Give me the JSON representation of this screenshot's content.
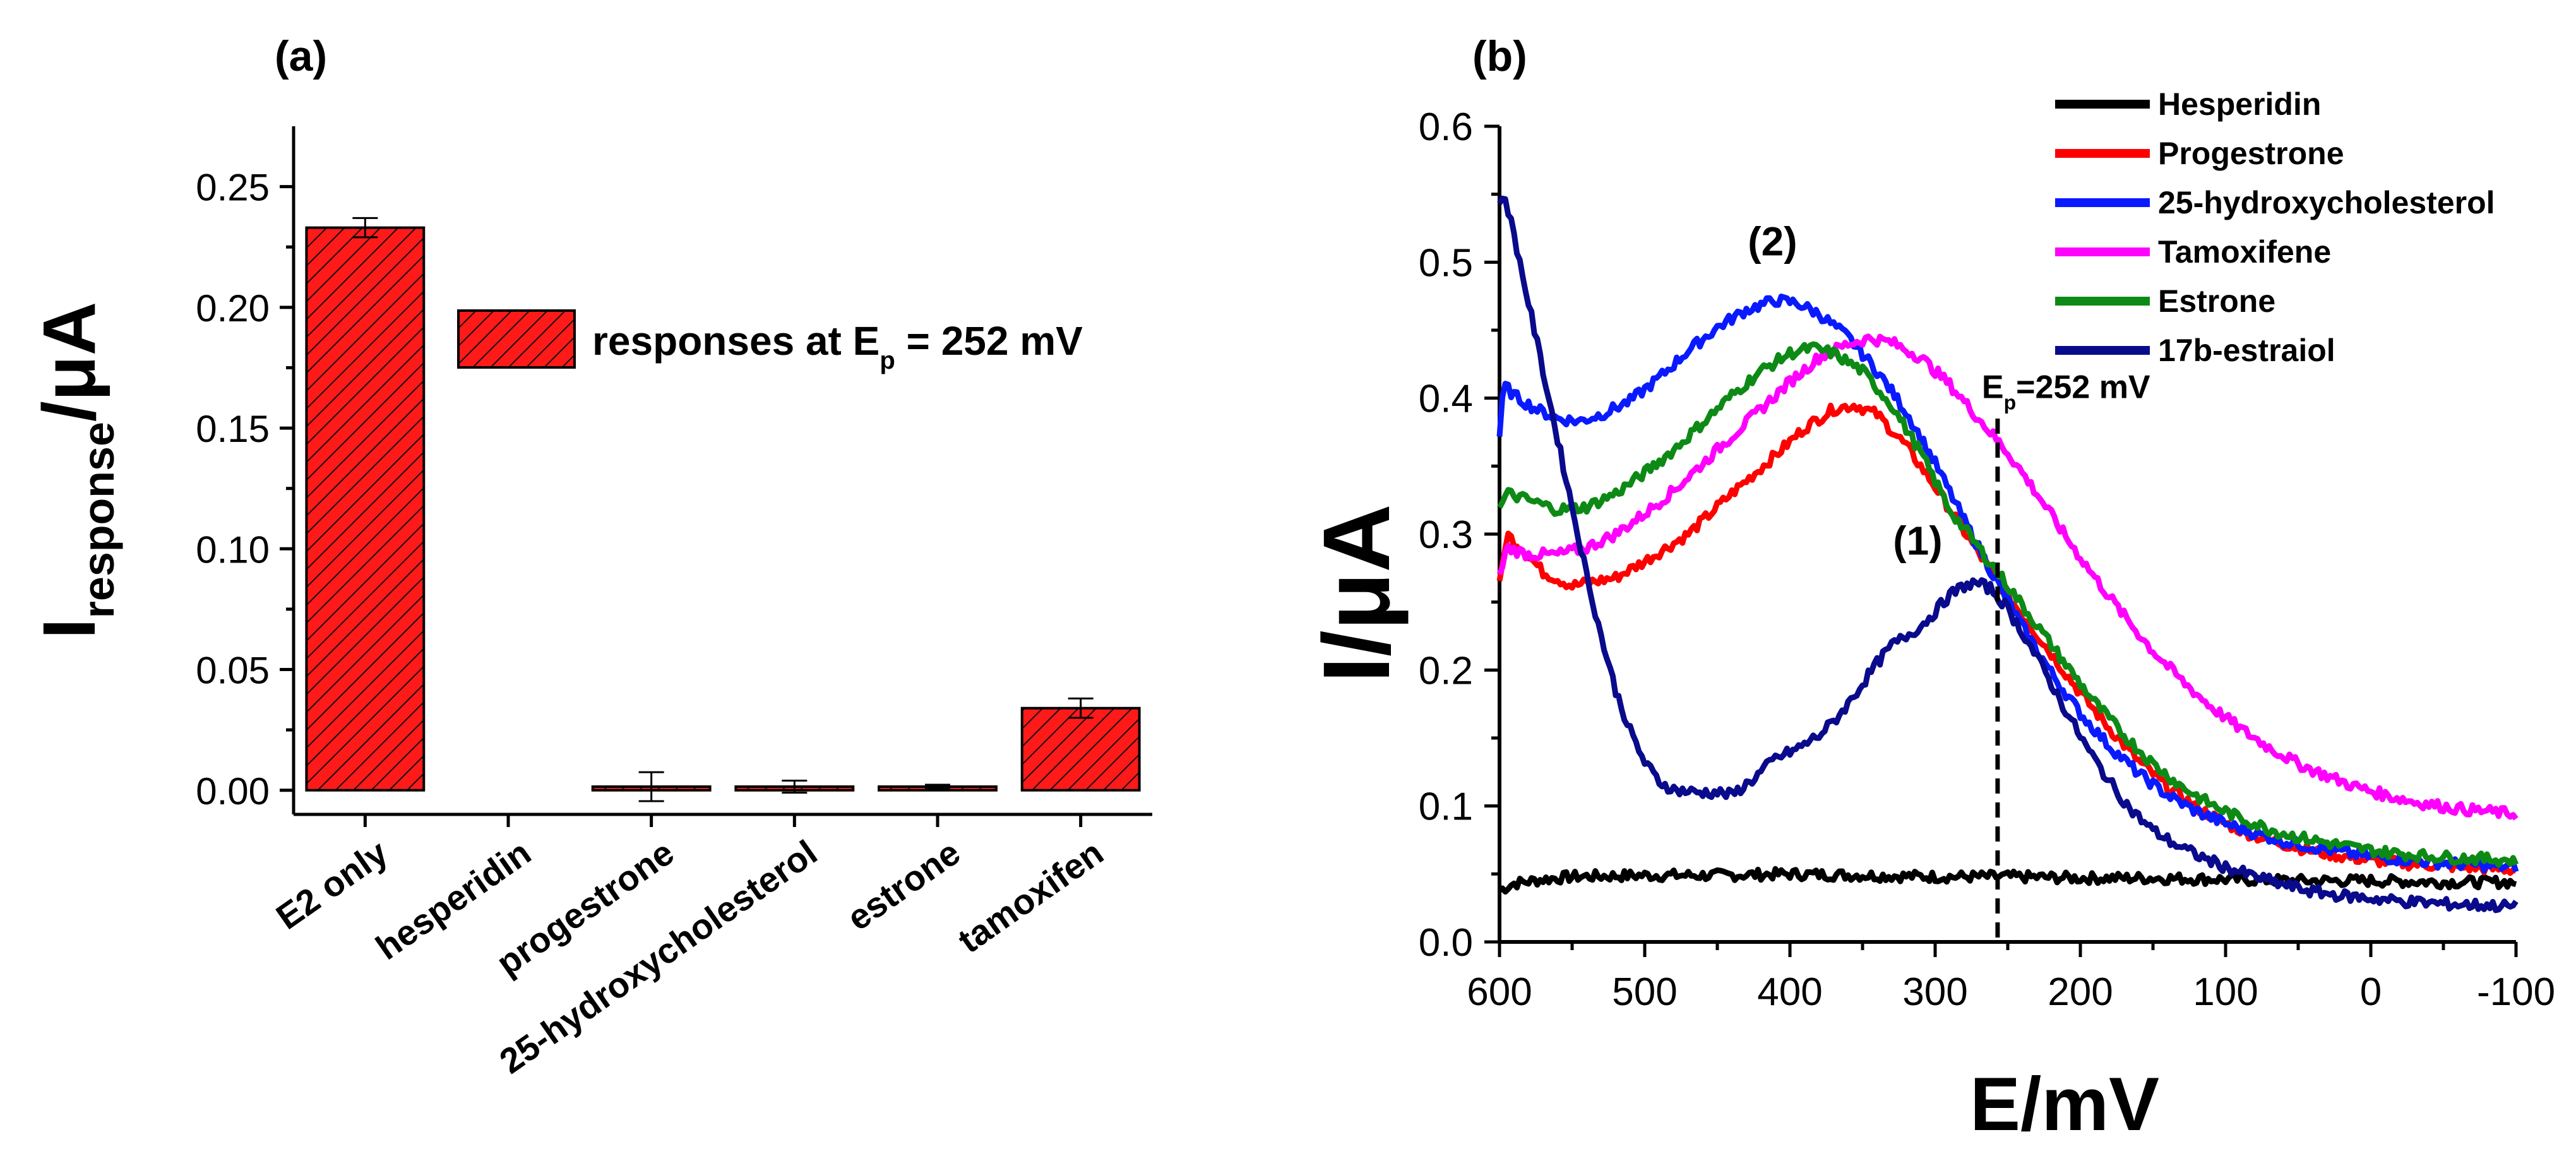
{
  "chart_data": [
    {
      "panel_label": "(a)",
      "type": "bar",
      "ylabel": "I",
      "ylabel_sub": "response",
      "ylabel_tail": "/μA",
      "ylim": [
        -0.01,
        0.275
      ],
      "yticks": [
        0.0,
        0.05,
        0.1,
        0.15,
        0.2,
        0.25
      ],
      "ytick_labels": [
        "0.00",
        "0.05",
        "0.10",
        "0.15",
        "0.20",
        "0.25"
      ],
      "categories": [
        "E2 only",
        "hesperidin",
        "progestrone",
        "25-hydroxycholesterol",
        "estrone",
        "tamoxifen"
      ],
      "values": [
        0.233,
        0.0,
        0.0015,
        0.0015,
        0.0015,
        0.034
      ],
      "errors": [
        0.004,
        0.0,
        0.006,
        0.0025,
        0.0008,
        0.004
      ],
      "legend_text": "responses at E",
      "legend_sub": "p",
      "legend_tail": " = 252 mV",
      "bar_color": "#ff1a1a",
      "hatch_color": "#000000"
    },
    {
      "panel_label": "(b)",
      "type": "line",
      "xlabel": "E/mV",
      "ylabel": "I/μA",
      "xlim": [
        600,
        -100
      ],
      "ylim": [
        0.0,
        0.6
      ],
      "xticks": [
        600,
        500,
        400,
        300,
        200,
        100,
        0,
        -100
      ],
      "xtick_labels": [
        "600",
        "500",
        "400",
        "300",
        "200",
        "100",
        "0",
        "-100"
      ],
      "yticks": [
        0.0,
        0.1,
        0.2,
        0.3,
        0.4,
        0.5,
        0.6
      ],
      "ytick_labels": [
        "0.0",
        "0.1",
        "0.2",
        "0.3",
        "0.4",
        "0.5",
        "0.6"
      ],
      "annotations": {
        "peak1": "(1)",
        "peak2": "(2)",
        "ep_text": "E",
        "ep_sub": "p",
        "ep_tail": "=252 mV",
        "ep_x": 257
      },
      "series": [
        {
          "name": "Hesperidin",
          "color": "#000000",
          "points": [
            [
              600,
              0.038
            ],
            [
              590,
              0.043
            ],
            [
              570,
              0.046
            ],
            [
              550,
              0.048
            ],
            [
              500,
              0.049
            ],
            [
              450,
              0.049
            ],
            [
              400,
              0.05
            ],
            [
              350,
              0.049
            ],
            [
              300,
              0.048
            ],
            [
              250,
              0.048
            ],
            [
              200,
              0.047
            ],
            [
              150,
              0.047
            ],
            [
              100,
              0.046
            ],
            [
              50,
              0.045
            ],
            [
              0,
              0.045
            ],
            [
              -50,
              0.044
            ],
            [
              -100,
              0.044
            ]
          ]
        },
        {
          "name": "Progestrone",
          "color": "#ff0000",
          "points": [
            [
              600,
              0.262
            ],
            [
              595,
              0.3
            ],
            [
              585,
              0.29
            ],
            [
              570,
              0.272
            ],
            [
              550,
              0.262
            ],
            [
              520,
              0.268
            ],
            [
              500,
              0.28
            ],
            [
              470,
              0.3
            ],
            [
              440,
              0.33
            ],
            [
              410,
              0.358
            ],
            [
              390,
              0.378
            ],
            [
              370,
              0.392
            ],
            [
              355,
              0.395
            ],
            [
              340,
              0.388
            ],
            [
              320,
              0.365
            ],
            [
              300,
              0.335
            ],
            [
              280,
              0.302
            ],
            [
              260,
              0.27
            ],
            [
              240,
              0.24
            ],
            [
              220,
              0.212
            ],
            [
              200,
              0.183
            ],
            [
              180,
              0.157
            ],
            [
              160,
              0.133
            ],
            [
              140,
              0.114
            ],
            [
              120,
              0.099
            ],
            [
              100,
              0.087
            ],
            [
              80,
              0.078
            ],
            [
              60,
              0.072
            ],
            [
              40,
              0.067
            ],
            [
              20,
              0.063
            ],
            [
              0,
              0.06
            ],
            [
              -20,
              0.058
            ],
            [
              -50,
              0.056
            ],
            [
              -100,
              0.053
            ]
          ]
        },
        {
          "name": "25-hydroxycholesterol",
          "color": "#0a1aff",
          "points": [
            [
              600,
              0.372
            ],
            [
              597,
              0.41
            ],
            [
              590,
              0.402
            ],
            [
              575,
              0.392
            ],
            [
              560,
              0.385
            ],
            [
              545,
              0.383
            ],
            [
              530,
              0.388
            ],
            [
              510,
              0.398
            ],
            [
              490,
              0.415
            ],
            [
              470,
              0.435
            ],
            [
              450,
              0.452
            ],
            [
              430,
              0.465
            ],
            [
              410,
              0.472
            ],
            [
              395,
              0.47
            ],
            [
              380,
              0.462
            ],
            [
              360,
              0.445
            ],
            [
              340,
              0.42
            ],
            [
              320,
              0.39
            ],
            [
              300,
              0.352
            ],
            [
              280,
              0.31
            ],
            [
              260,
              0.27
            ],
            [
              240,
              0.232
            ],
            [
              220,
              0.198
            ],
            [
              200,
              0.168
            ],
            [
              180,
              0.144
            ],
            [
              160,
              0.124
            ],
            [
              140,
              0.108
            ],
            [
              120,
              0.096
            ],
            [
              100,
              0.087
            ],
            [
              80,
              0.08
            ],
            [
              60,
              0.074
            ],
            [
              40,
              0.07
            ],
            [
              20,
              0.066
            ],
            [
              0,
              0.063
            ],
            [
              -20,
              0.061
            ],
            [
              -50,
              0.058
            ],
            [
              -100,
              0.055
            ]
          ]
        },
        {
          "name": "Tamoxifene",
          "color": "#ff00ff",
          "points": [
            [
              600,
              0.268
            ],
            [
              595,
              0.29
            ],
            [
              580,
              0.285
            ],
            [
              560,
              0.285
            ],
            [
              540,
              0.29
            ],
            [
              520,
              0.3
            ],
            [
              500,
              0.315
            ],
            [
              480,
              0.332
            ],
            [
              460,
              0.352
            ],
            [
              440,
              0.372
            ],
            [
              420,
              0.392
            ],
            [
              400,
              0.412
            ],
            [
              380,
              0.43
            ],
            [
              360,
              0.44
            ],
            [
              345,
              0.444
            ],
            [
              330,
              0.441
            ],
            [
              310,
              0.43
            ],
            [
              290,
              0.41
            ],
            [
              270,
              0.385
            ],
            [
              250,
              0.36
            ],
            [
              230,
              0.33
            ],
            [
              210,
              0.298
            ],
            [
              190,
              0.268
            ],
            [
              170,
              0.24
            ],
            [
              150,
              0.214
            ],
            [
              130,
              0.192
            ],
            [
              110,
              0.173
            ],
            [
              90,
              0.157
            ],
            [
              70,
              0.143
            ],
            [
              50,
              0.131
            ],
            [
              30,
              0.122
            ],
            [
              10,
              0.114
            ],
            [
              -10,
              0.108
            ],
            [
              -30,
              0.103
            ],
            [
              -60,
              0.098
            ],
            [
              -100,
              0.094
            ]
          ]
        },
        {
          "name": "Estrone",
          "color": "#0d8a15",
          "points": [
            [
              600,
              0.318
            ],
            [
              595,
              0.33
            ],
            [
              580,
              0.325
            ],
            [
              560,
              0.318
            ],
            [
              540,
              0.32
            ],
            [
              520,
              0.33
            ],
            [
              500,
              0.345
            ],
            [
              480,
              0.362
            ],
            [
              460,
              0.382
            ],
            [
              440,
              0.402
            ],
            [
              420,
              0.42
            ],
            [
              400,
              0.433
            ],
            [
              385,
              0.437
            ],
            [
              370,
              0.433
            ],
            [
              350,
              0.42
            ],
            [
              330,
              0.395
            ],
            [
              310,
              0.36
            ],
            [
              290,
              0.318
            ],
            [
              270,
              0.29
            ],
            [
              250,
              0.262
            ],
            [
              230,
              0.233
            ],
            [
              210,
              0.204
            ],
            [
              190,
              0.176
            ],
            [
              170,
              0.152
            ],
            [
              150,
              0.131
            ],
            [
              130,
              0.114
            ],
            [
              110,
              0.101
            ],
            [
              90,
              0.091
            ],
            [
              70,
              0.083
            ],
            [
              50,
              0.077
            ],
            [
              30,
              0.073
            ],
            [
              10,
              0.069
            ],
            [
              -10,
              0.066
            ],
            [
              -40,
              0.063
            ],
            [
              -100,
              0.06
            ]
          ]
        },
        {
          "name": "17b-estraiol",
          "color": "#0a0a8c",
          "points": [
            [
              600,
              0.54
            ],
            [
              597,
              0.552
            ],
            [
              590,
              0.52
            ],
            [
              580,
              0.47
            ],
            [
              570,
              0.42
            ],
            [
              560,
              0.37
            ],
            [
              550,
              0.32
            ],
            [
              540,
              0.27
            ],
            [
              530,
              0.225
            ],
            [
              520,
              0.185
            ],
            [
              510,
              0.155
            ],
            [
              500,
              0.132
            ],
            [
              490,
              0.118
            ],
            [
              480,
              0.112
            ],
            [
              465,
              0.11
            ],
            [
              450,
              0.11
            ],
            [
              440,
              0.108
            ],
            [
              425,
              0.12
            ],
            [
              410,
              0.135
            ],
            [
              395,
              0.142
            ],
            [
              380,
              0.152
            ],
            [
              370,
              0.162
            ],
            [
              360,
              0.175
            ],
            [
              350,
              0.19
            ],
            [
              340,
              0.205
            ],
            [
              330,
              0.218
            ],
            [
              320,
              0.225
            ],
            [
              310,
              0.232
            ],
            [
              300,
              0.243
            ],
            [
              290,
              0.255
            ],
            [
              280,
              0.262
            ],
            [
              272,
              0.264
            ],
            [
              262,
              0.26
            ],
            [
              252,
              0.248
            ],
            [
              240,
              0.228
            ],
            [
              225,
              0.2
            ],
            [
              210,
              0.17
            ],
            [
              195,
              0.142
            ],
            [
              180,
              0.118
            ],
            [
              165,
              0.097
            ],
            [
              150,
              0.082
            ],
            [
              135,
              0.072
            ],
            [
              120,
              0.064
            ],
            [
              100,
              0.055
            ],
            [
              80,
              0.048
            ],
            [
              60,
              0.042
            ],
            [
              40,
              0.037
            ],
            [
              20,
              0.034
            ],
            [
              0,
              0.032
            ],
            [
              -20,
              0.03
            ],
            [
              -50,
              0.028
            ],
            [
              -100,
              0.026
            ]
          ]
        }
      ]
    }
  ]
}
